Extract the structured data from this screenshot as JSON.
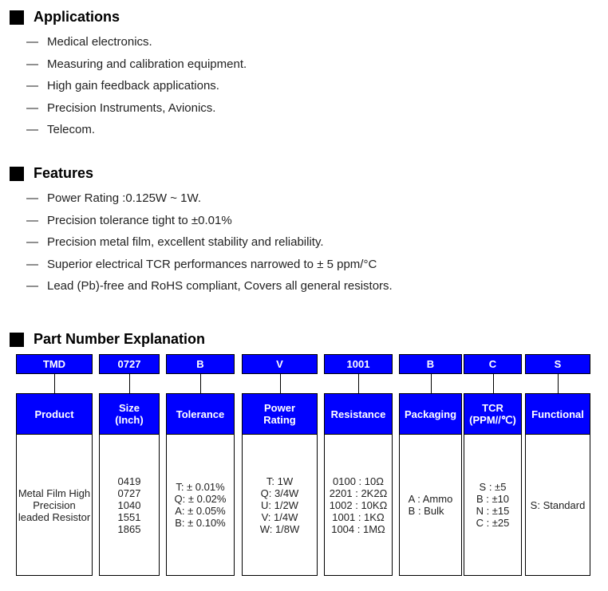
{
  "applications": {
    "title": "Applications",
    "items": [
      "Medical electronics.",
      "Measuring and calibration equipment.",
      "High gain feedback applications.",
      "Precision Instruments, Avionics.",
      "Telecom."
    ]
  },
  "features": {
    "title": "Features",
    "items": [
      "Power Rating :0.125W ~ 1W.",
      "Precision tolerance tight to ±0.01%",
      "Precision metal film, excellent stability and reliability.",
      "Superior electrical TCR performances narrowed to ± 5 ppm/°C",
      "Lead (Pb)-free and RoHS compliant, Covers all general resistors."
    ]
  },
  "dash": "—",
  "part_number": {
    "title": "Part Number Explanation",
    "accent": "#0000ff",
    "columns": [
      {
        "code": "TMD",
        "header": "Product",
        "body": "Metal Film High\nPrecision\nleaded Resistor"
      },
      {
        "code": "0727",
        "header": "Size\n(Inch)",
        "body": "0419\n0727\n1040\n1551\n1865"
      },
      {
        "code": "B",
        "header": "Tolerance",
        "body": "T: ± 0.01%\nQ: ± 0.02%\nA: ± 0.05%\nB: ± 0.10%"
      },
      {
        "code": "V",
        "header": "Power\nRating",
        "body": "T: 1W\nQ: 3/4W\nU: 1/2W\nV: 1/4W\nW: 1/8W"
      },
      {
        "code": "1001",
        "header": "Resistance",
        "body": "0100 : 10Ω\n2201 : 2K2Ω\n1002 : 10KΩ\n1001 : 1KΩ\n1004 : 1MΩ"
      },
      {
        "code": "B",
        "header": "Packaging",
        "body": "A : Ammo\nB : Bulk"
      },
      {
        "code": "C",
        "header": "TCR\n(PPM//℃)",
        "body": "S : ±5\nB : ±10\nN : ±15\nC : ±25"
      },
      {
        "code": "S",
        "header": "Functional",
        "body": "S: Standard"
      }
    ]
  }
}
